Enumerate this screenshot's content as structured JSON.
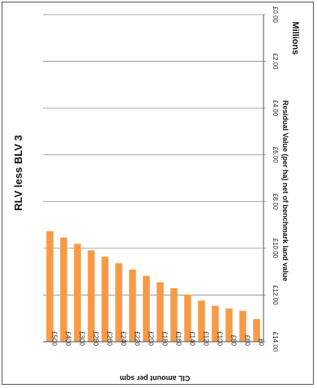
{
  "chart_data": {
    "type": "bar",
    "orientation": "rotated-90-clockwise",
    "title": "RLV less BLV 3",
    "xlabel": "CIL amount per sqm",
    "ylabel": "Residual Value (per ha) net of benchmark land value",
    "y_units": "Millions",
    "categories": [
      "£500",
      "£400",
      "£300",
      "£280",
      "£260",
      "£240",
      "£220",
      "£200",
      "£180",
      "£160",
      "£140",
      "£120",
      "£100",
      "£80",
      "£60",
      "£0"
    ],
    "values": [
      9.27,
      9.54,
      9.81,
      10.09,
      10.36,
      10.64,
      10.91,
      11.18,
      11.45,
      11.71,
      11.98,
      12.24,
      12.46,
      12.58,
      12.68,
      13.03
    ],
    "ylim": [
      0,
      14
    ],
    "y_ticks": [
      "£0.00",
      "£2.00",
      "£4.00",
      "£6.00",
      "£8.00",
      "£10.00",
      "£12.00",
      "£14.00"
    ],
    "grid": true,
    "legend": "none",
    "bar_color": "#F79A46"
  }
}
